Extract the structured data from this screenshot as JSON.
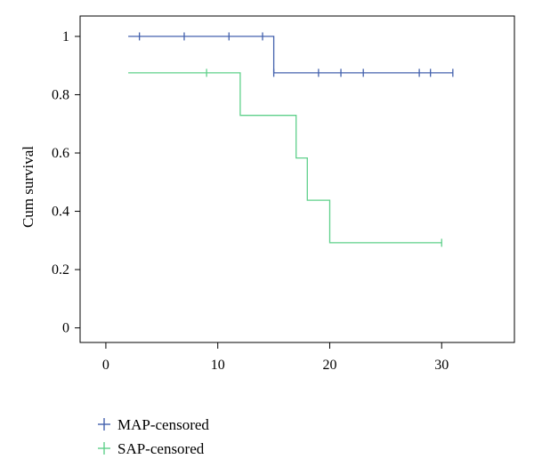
{
  "chart_data": {
    "type": "line",
    "title": "",
    "xlabel": "",
    "ylabel": "Cum survival",
    "xlim": [
      -2.3,
      36.5
    ],
    "ylim": [
      -0.05,
      1.07
    ],
    "xticks": [
      0,
      10,
      20,
      30
    ],
    "yticks": [
      0,
      0.2,
      0.4,
      0.6,
      0.8,
      1
    ],
    "grid": false,
    "legend_position": "bottom-left",
    "series": [
      {
        "name": "MAP",
        "color": "#4361ad",
        "step": [
          [
            2,
            1
          ],
          [
            15,
            1
          ],
          [
            15,
            0.875
          ],
          [
            31,
            0.875
          ]
        ],
        "censored": [
          [
            3,
            1
          ],
          [
            7,
            1
          ],
          [
            11,
            1
          ],
          [
            14,
            1
          ],
          [
            15,
            0.875
          ],
          [
            19,
            0.875
          ],
          [
            21,
            0.875
          ],
          [
            23,
            0.875
          ],
          [
            28,
            0.875
          ],
          [
            29,
            0.875
          ],
          [
            31,
            0.875
          ]
        ]
      },
      {
        "name": "SAP",
        "color": "#5fd08a",
        "step": [
          [
            2,
            0.875
          ],
          [
            12,
            0.875
          ],
          [
            12,
            0.729
          ],
          [
            17,
            0.729
          ],
          [
            17,
            0.583
          ],
          [
            18,
            0.583
          ],
          [
            18,
            0.438
          ],
          [
            20,
            0.438
          ],
          [
            20,
            0.292
          ],
          [
            30,
            0.292
          ]
        ],
        "censored": [
          [
            9,
            0.875
          ],
          [
            30,
            0.292
          ]
        ]
      }
    ],
    "legend": [
      {
        "label": "MAP-censored",
        "color": "#4361ad"
      },
      {
        "label": "SAP-censored",
        "color": "#5fd08a"
      }
    ]
  }
}
